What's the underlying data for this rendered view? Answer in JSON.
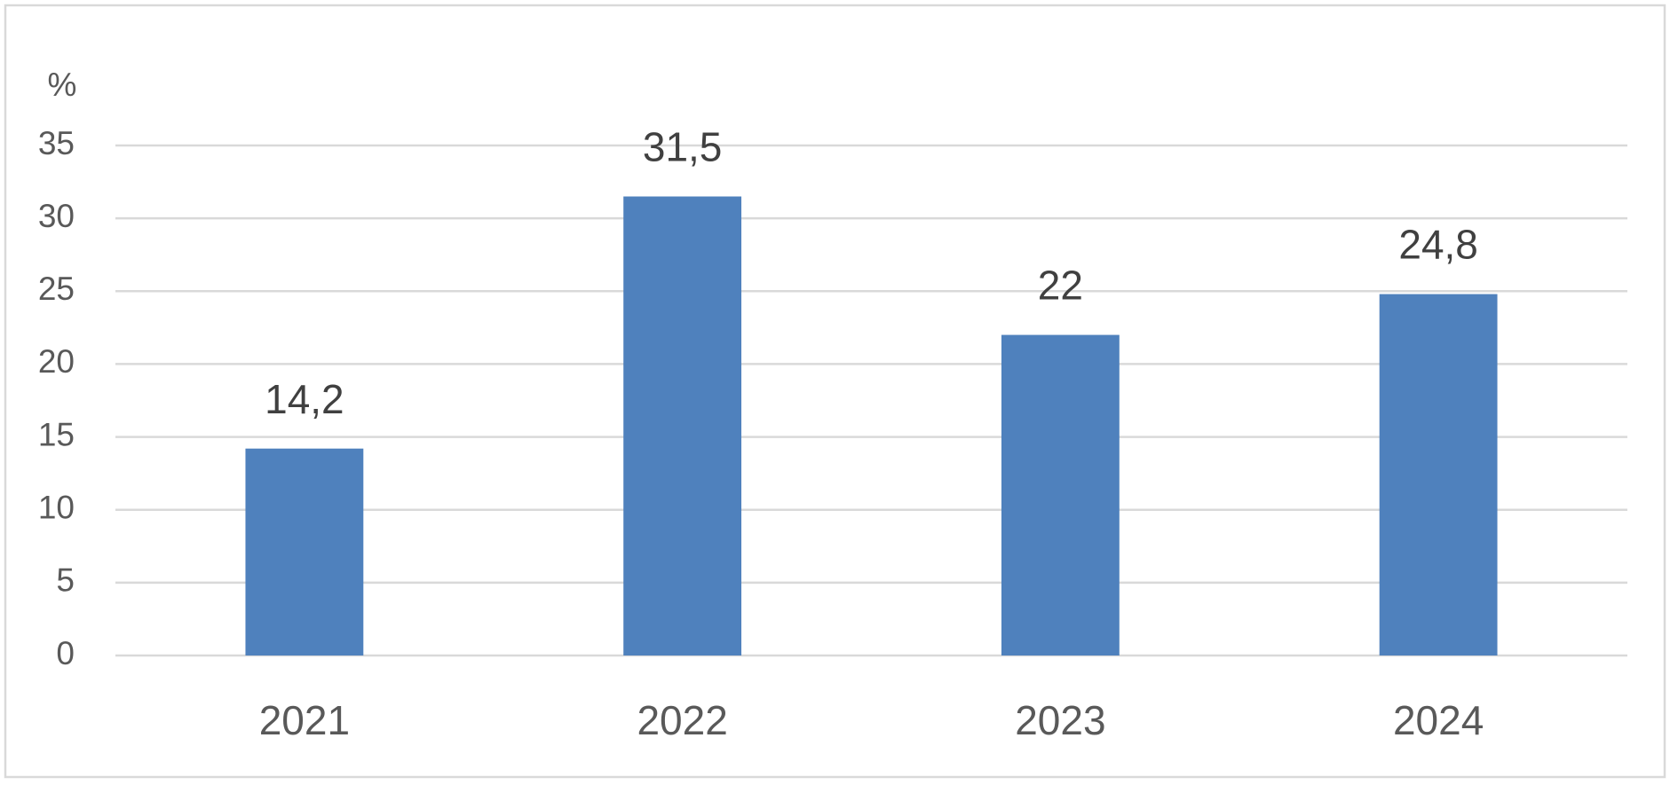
{
  "chart_data": {
    "type": "bar",
    "y_label": "%",
    "categories": [
      "2021",
      "2022",
      "2023",
      "2024"
    ],
    "values": [
      14.2,
      31.5,
      22,
      24.8
    ],
    "value_labels": [
      "14,2",
      "31,5",
      "22",
      "24,8"
    ],
    "color": "#4f81bd",
    "ylim": [
      0,
      35
    ],
    "yticks": [
      0,
      5,
      10,
      15,
      20,
      25,
      30,
      35
    ],
    "grid": true
  }
}
